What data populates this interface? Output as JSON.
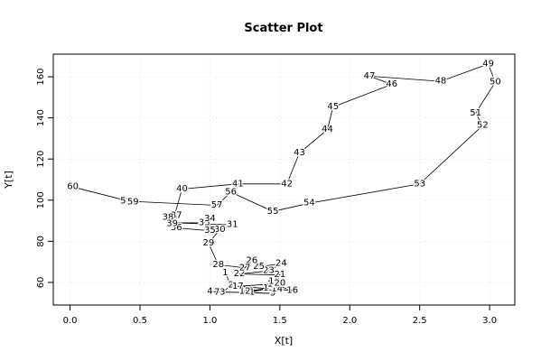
{
  "chart_data": {
    "type": "scatter",
    "title": "Scatter Plot",
    "xlabel": "X[t]",
    "ylabel": "Y[t]",
    "xlim": [
      -0.12,
      3.18
    ],
    "ylim": [
      49,
      171
    ],
    "xticks": [
      0.0,
      0.5,
      1.0,
      1.5,
      2.0,
      2.5,
      3.0
    ],
    "xtick_labels": [
      "0.0",
      "0.5",
      "1.0",
      "1.5",
      "2.0",
      "2.5",
      "3.0"
    ],
    "yticks": [
      60,
      80,
      100,
      120,
      140,
      160
    ],
    "ytick_labels": [
      "60",
      "80",
      "100",
      "120",
      "140",
      "160"
    ],
    "grid": true,
    "points_connected": true,
    "points": [
      {
        "label": "1",
        "x": 1.11,
        "y": 64.6
      },
      {
        "label": "2",
        "x": 1.15,
        "y": 58.6
      },
      {
        "label": "3",
        "x": 1.09,
        "y": 55.2
      },
      {
        "label": "4",
        "x": 1.0,
        "y": 55.6
      },
      {
        "label": "5",
        "x": 1.45,
        "y": 54.6
      },
      {
        "label": "6",
        "x": 1.25,
        "y": 55.2
      },
      {
        "label": "7",
        "x": 1.05,
        "y": 55.2
      },
      {
        "label": "8",
        "x": 1.27,
        "y": 55.2
      },
      {
        "label": "9",
        "x": 1.24,
        "y": 55.2
      },
      {
        "label": "10",
        "x": 1.47,
        "y": 57.6
      },
      {
        "label": "11",
        "x": 1.28,
        "y": 55.2
      },
      {
        "label": "12",
        "x": 1.25,
        "y": 55.6
      },
      {
        "label": "13",
        "x": 1.42,
        "y": 57.1
      },
      {
        "label": "14",
        "x": 1.48,
        "y": 56.6
      },
      {
        "label": "15",
        "x": 1.45,
        "y": 59.1
      },
      {
        "label": "16",
        "x": 1.59,
        "y": 56.1
      },
      {
        "label": "17",
        "x": 1.2,
        "y": 58.1
      },
      {
        "label": "18",
        "x": 1.49,
        "y": 59.5
      },
      {
        "label": "19",
        "x": 1.46,
        "y": 60.5
      },
      {
        "label": "20",
        "x": 1.5,
        "y": 59.5
      },
      {
        "label": "21",
        "x": 1.5,
        "y": 63.6
      },
      {
        "label": "22",
        "x": 1.21,
        "y": 64.1
      },
      {
        "label": "23",
        "x": 1.42,
        "y": 65.6
      },
      {
        "label": "24",
        "x": 1.51,
        "y": 69.1
      },
      {
        "label": "25",
        "x": 1.35,
        "y": 67.6
      },
      {
        "label": "26",
        "x": 1.3,
        "y": 70.5
      },
      {
        "label": "27",
        "x": 1.25,
        "y": 67.1
      },
      {
        "label": "28",
        "x": 1.06,
        "y": 68.6
      },
      {
        "label": "29",
        "x": 0.99,
        "y": 79.1
      },
      {
        "label": "30",
        "x": 1.07,
        "y": 85.6
      },
      {
        "label": "31",
        "x": 1.16,
        "y": 88.0
      },
      {
        "label": "32",
        "x": 0.73,
        "y": 89.0
      },
      {
        "label": "33",
        "x": 0.96,
        "y": 89.0
      },
      {
        "label": "34",
        "x": 1.0,
        "y": 91.0
      },
      {
        "label": "35",
        "x": 1.0,
        "y": 85.1
      },
      {
        "label": "36",
        "x": 0.76,
        "y": 86.5
      },
      {
        "label": "37",
        "x": 0.76,
        "y": 92.5
      },
      {
        "label": "38",
        "x": 0.7,
        "y": 91.5
      },
      {
        "label": "39",
        "x": 0.73,
        "y": 88.5
      },
      {
        "label": "40",
        "x": 0.8,
        "y": 105.4
      },
      {
        "label": "41",
        "x": 1.2,
        "y": 107.9
      },
      {
        "label": "42",
        "x": 1.55,
        "y": 107.9
      },
      {
        "label": "43",
        "x": 1.64,
        "y": 122.9
      },
      {
        "label": "44",
        "x": 1.84,
        "y": 134.3
      },
      {
        "label": "45",
        "x": 1.88,
        "y": 145.3
      },
      {
        "label": "46",
        "x": 2.3,
        "y": 156.3
      },
      {
        "label": "47",
        "x": 2.14,
        "y": 160.3
      },
      {
        "label": "48",
        "x": 2.65,
        "y": 157.8
      },
      {
        "label": "49",
        "x": 2.99,
        "y": 166.2
      },
      {
        "label": "50",
        "x": 3.04,
        "y": 157.3
      },
      {
        "label": "51",
        "x": 2.9,
        "y": 142.3
      },
      {
        "label": "52",
        "x": 2.95,
        "y": 136.3
      },
      {
        "label": "53",
        "x": 2.5,
        "y": 107.9
      },
      {
        "label": "54",
        "x": 1.71,
        "y": 98.5
      },
      {
        "label": "55",
        "x": 1.45,
        "y": 94.5
      },
      {
        "label": "56",
        "x": 1.15,
        "y": 103.9
      },
      {
        "label": "57",
        "x": 1.05,
        "y": 97.5
      },
      {
        "label": "58",
        "x": 0.4,
        "y": 99.5
      },
      {
        "label": "59",
        "x": 0.45,
        "y": 99.0
      },
      {
        "label": "60",
        "x": 0.02,
        "y": 106.4
      }
    ]
  }
}
